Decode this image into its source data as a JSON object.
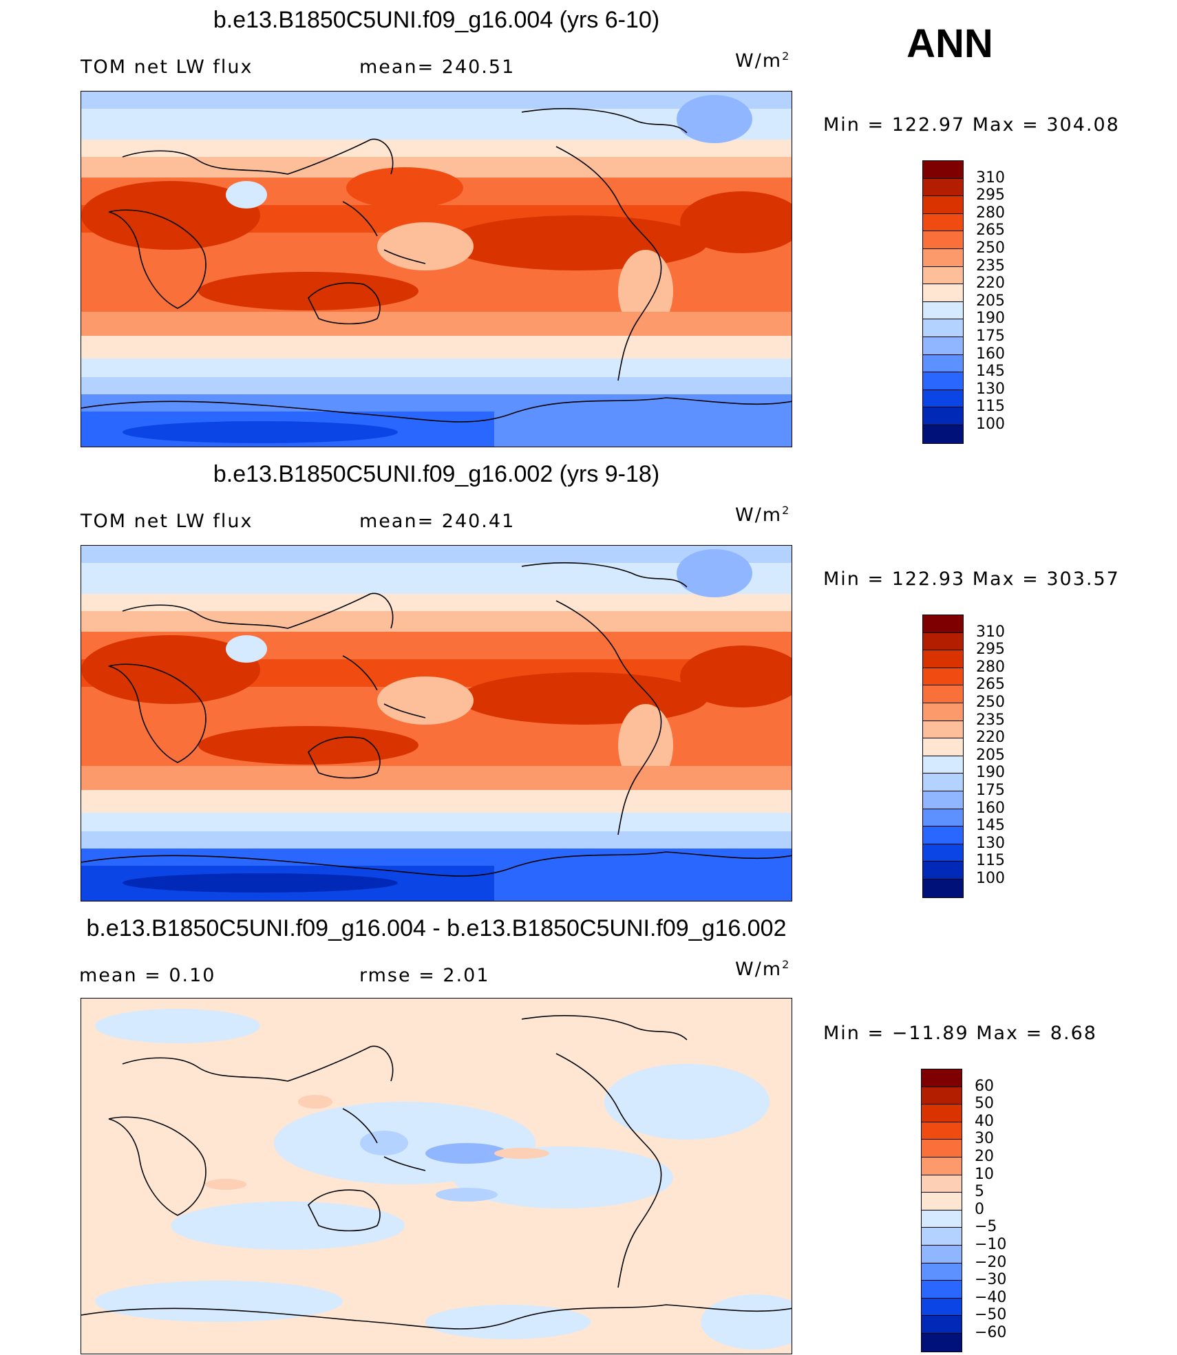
{
  "season": "ANN",
  "panels": [
    {
      "title": "b.e13.B1850C5UNI.f09_g16.004 (yrs 6-10)",
      "left_label": "TOM  net  LW  flux",
      "mid_label": "mean=  240.51",
      "units_base": "W/m",
      "units_exp": "2",
      "minmax": "Min  =  122.97  Max  =  304.08"
    },
    {
      "title": "b.e13.B1850C5UNI.f09_g16.002 (yrs 9-18)",
      "left_label": "TOM  net  LW  flux",
      "mid_label": "mean=  240.41",
      "units_base": "W/m",
      "units_exp": "2",
      "minmax": "Min  =  122.93  Max  =  303.57"
    },
    {
      "title": "b.e13.B1850C5UNI.f09_g16.004 - b.e13.B1850C5UNI.f09_g16.002",
      "left_label": "mean  =      0.10",
      "mid_label": "rmse  =      2.01",
      "units_base": "W/m",
      "units_exp": "2",
      "minmax": "Min  =  −11.89  Max  =      8.68"
    }
  ],
  "chart_data": [
    {
      "type": "heatmap",
      "field": "TOM net LW flux",
      "mean": 240.51,
      "min": 122.97,
      "max": 304.08,
      "colorbar_levels": [
        "310",
        "295",
        "280",
        "265",
        "250",
        "235",
        "220",
        "205",
        "190",
        "175",
        "160",
        "145",
        "130",
        "115",
        "100"
      ],
      "colorbar_colors": [
        "#7f0000",
        "#b31d00",
        "#d93300",
        "#f04c12",
        "#f9703a",
        "#fc9a6b",
        "#fdbf9a",
        "#fee6d3",
        "#d5e9ff",
        "#b4d2ff",
        "#8fb6ff",
        "#5c91ff",
        "#2a67ff",
        "#0b45e6",
        "#0029b8",
        "#00127a"
      ]
    },
    {
      "type": "heatmap",
      "field": "TOM net LW flux",
      "mean": 240.41,
      "min": 122.93,
      "max": 303.57,
      "colorbar_levels": [
        "310",
        "295",
        "280",
        "265",
        "250",
        "235",
        "220",
        "205",
        "190",
        "175",
        "160",
        "145",
        "130",
        "115",
        "100"
      ],
      "colorbar_colors": [
        "#7f0000",
        "#b31d00",
        "#d93300",
        "#f04c12",
        "#f9703a",
        "#fc9a6b",
        "#fdbf9a",
        "#fee6d3",
        "#d5e9ff",
        "#b4d2ff",
        "#8fb6ff",
        "#5c91ff",
        "#2a67ff",
        "#0b45e6",
        "#0029b8",
        "#00127a"
      ]
    },
    {
      "type": "heatmap",
      "field": "difference",
      "mean": 0.1,
      "rmse": 2.01,
      "min": -11.89,
      "max": 8.68,
      "colorbar_levels": [
        "60",
        "50",
        "40",
        "30",
        "20",
        "10",
        "5",
        "0",
        "−5",
        "−10",
        "−20",
        "−30",
        "−40",
        "−50",
        "−60"
      ],
      "colorbar_colors": [
        "#7f0000",
        "#b31d00",
        "#d93300",
        "#f04c12",
        "#f9703a",
        "#fc9a6b",
        "#fdcfb4",
        "#fee6d3",
        "#d5e9ff",
        "#b4d2ff",
        "#8fb6ff",
        "#5c91ff",
        "#2a67ff",
        "#0b45e6",
        "#0029b8",
        "#00127a"
      ]
    }
  ]
}
